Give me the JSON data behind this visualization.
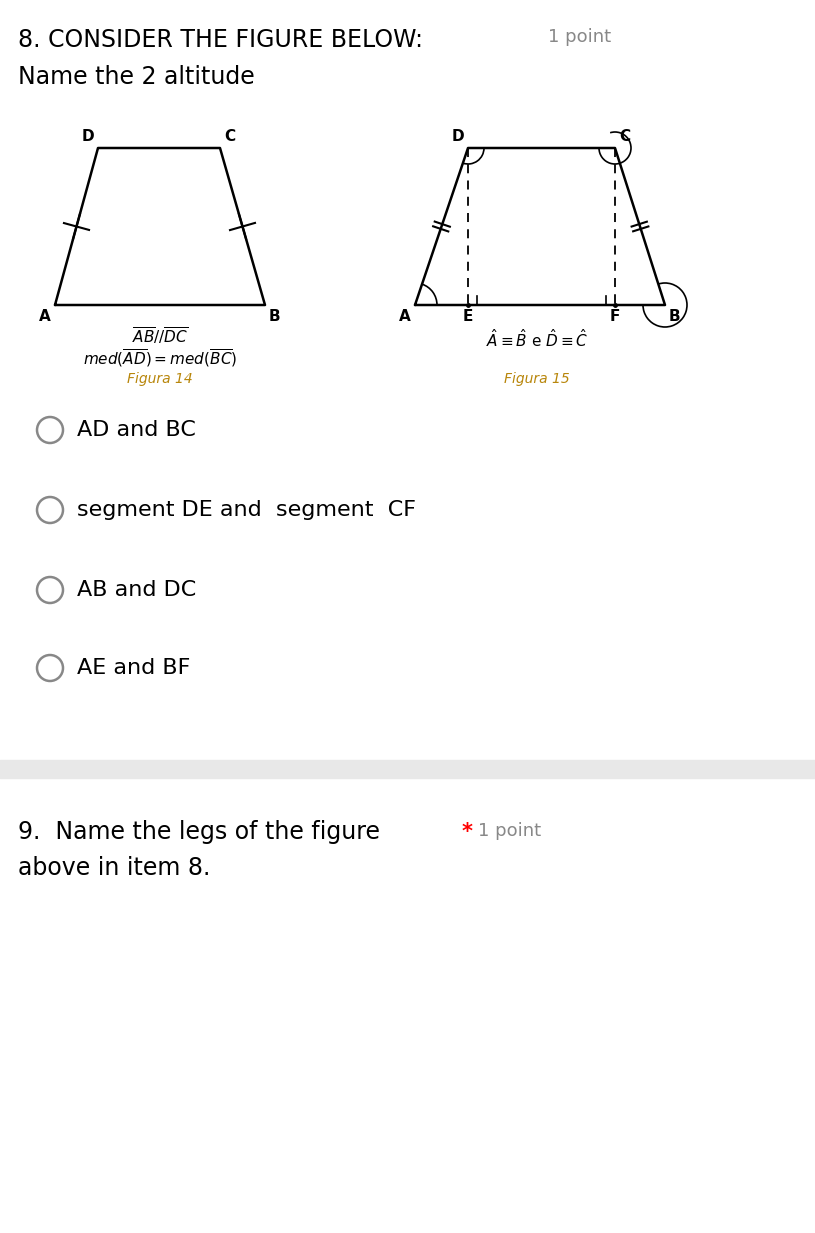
{
  "bg_color": "#ffffff",
  "title_text": "8. CONSIDER THE FIGURE BELOW:",
  "title_point": "1 point",
  "subtitle_text": "Name the 2 altitude",
  "fig14_label": "Figura 14",
  "fig15_label": "Figura 15",
  "options": [
    "AD and BC",
    "segment DE and  segment  CF",
    "AB and DC",
    "AE and BF"
  ],
  "question9_text": "9.  Name the legs of the figure",
  "question9_point": "1 point",
  "question9_sub": "above in item 8.",
  "separator_color": "#e8e8e8",
  "option_circle_color": "#888888",
  "figura_color": "#b8860b"
}
